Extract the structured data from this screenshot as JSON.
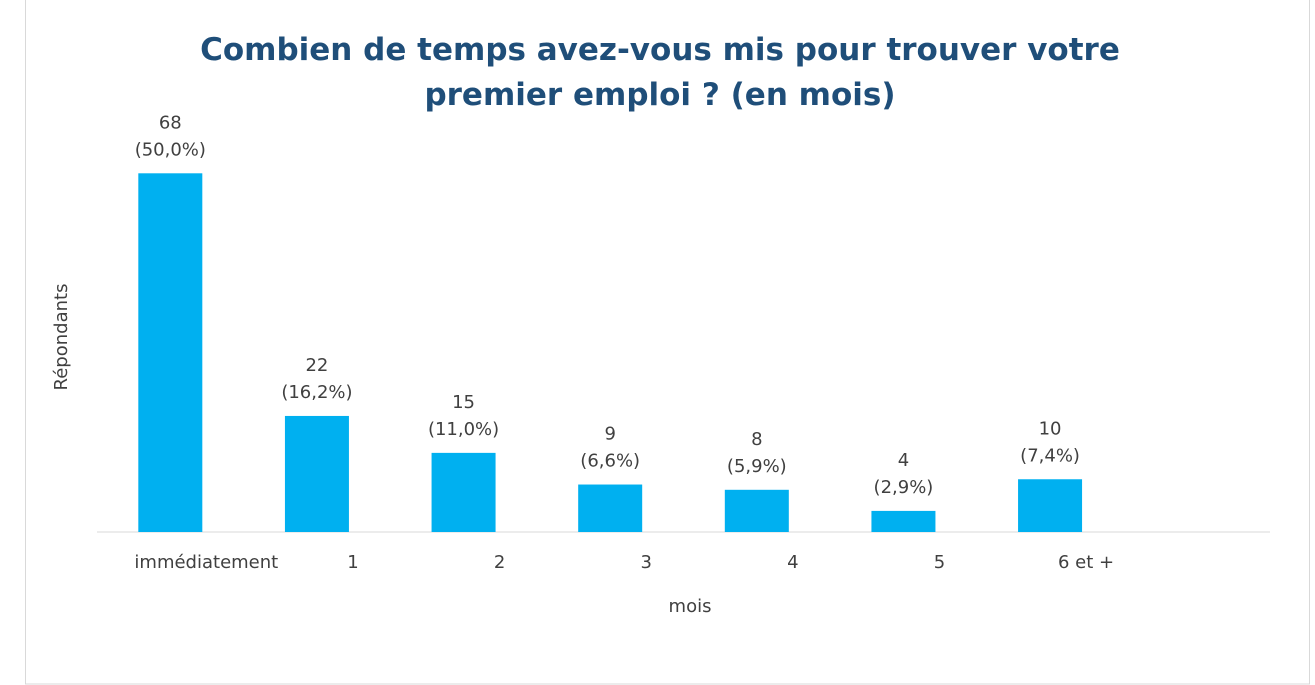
{
  "chart_data": {
    "type": "bar",
    "title": "Combien de temps avez-vous mis pour trouver votre premier emploi ? (en mois)",
    "x_label": "mois",
    "y_label": "Répondants",
    "categories": [
      "immédiatement",
      "1",
      "2",
      "3",
      "4",
      "5",
      "6 et +",
      null
    ],
    "values": [
      68,
      22,
      15,
      9,
      8,
      4,
      10,
      null
    ],
    "percent_labels": [
      "(50,0%)",
      "(16,2%)",
      "(11,0%)",
      "(6,6%)",
      "(5,9%)",
      "(2,9%)",
      "(7,4%)",
      null
    ],
    "color": "#00b0f0",
    "ylim": [
      0,
      80
    ]
  }
}
